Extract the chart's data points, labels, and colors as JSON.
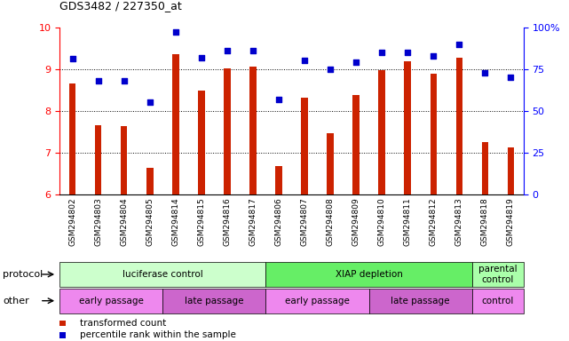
{
  "title": "GDS3482 / 227350_at",
  "samples": [
    "GSM294802",
    "GSM294803",
    "GSM294804",
    "GSM294805",
    "GSM294814",
    "GSM294815",
    "GSM294816",
    "GSM294817",
    "GSM294806",
    "GSM294807",
    "GSM294808",
    "GSM294809",
    "GSM294810",
    "GSM294811",
    "GSM294812",
    "GSM294813",
    "GSM294818",
    "GSM294819"
  ],
  "bar_values": [
    8.65,
    7.65,
    7.63,
    6.63,
    9.35,
    8.48,
    9.02,
    9.05,
    6.68,
    8.32,
    7.47,
    8.38,
    8.98,
    9.18,
    8.88,
    9.28,
    7.26,
    7.13
  ],
  "dot_values_pct": [
    81,
    68,
    68,
    55,
    97,
    82,
    86,
    86,
    57,
    80,
    75,
    79,
    85,
    85,
    83,
    90,
    73,
    70
  ],
  "bar_color": "#cc2200",
  "dot_color": "#0000cc",
  "ylim_left": [
    6,
    10
  ],
  "ylim_right": [
    0,
    100
  ],
  "yticks_left": [
    6,
    7,
    8,
    9,
    10
  ],
  "yticks_right": [
    0,
    25,
    50,
    75,
    100
  ],
  "ytick_labels_right": [
    "0",
    "25",
    "50",
    "75",
    "100%"
  ],
  "grid_values": [
    7,
    8,
    9
  ],
  "protocol_groups": [
    {
      "label": "lucife​rase control",
      "start": 0,
      "end": 8,
      "color": "#ccffcc"
    },
    {
      "label": "XIAP depletion",
      "start": 8,
      "end": 16,
      "color": "#66ee66"
    },
    {
      "label": "parental\ncontrol",
      "start": 16,
      "end": 18,
      "color": "#aaffaa"
    }
  ],
  "other_groups": [
    {
      "label": "early passage",
      "start": 0,
      "end": 4,
      "color": "#ee88ee"
    },
    {
      "label": "late passage",
      "start": 4,
      "end": 8,
      "color": "#cc66cc"
    },
    {
      "label": "early passage",
      "start": 8,
      "end": 12,
      "color": "#ee88ee"
    },
    {
      "label": "late passage",
      "start": 12,
      "end": 16,
      "color": "#cc66cc"
    },
    {
      "label": "control",
      "start": 16,
      "end": 18,
      "color": "#ee88ee"
    }
  ],
  "protocol_label": "protocol",
  "other_label": "other",
  "legend_bar_label": "transformed count",
  "legend_dot_label": "percentile rank within the sample",
  "bar_width": 0.25
}
